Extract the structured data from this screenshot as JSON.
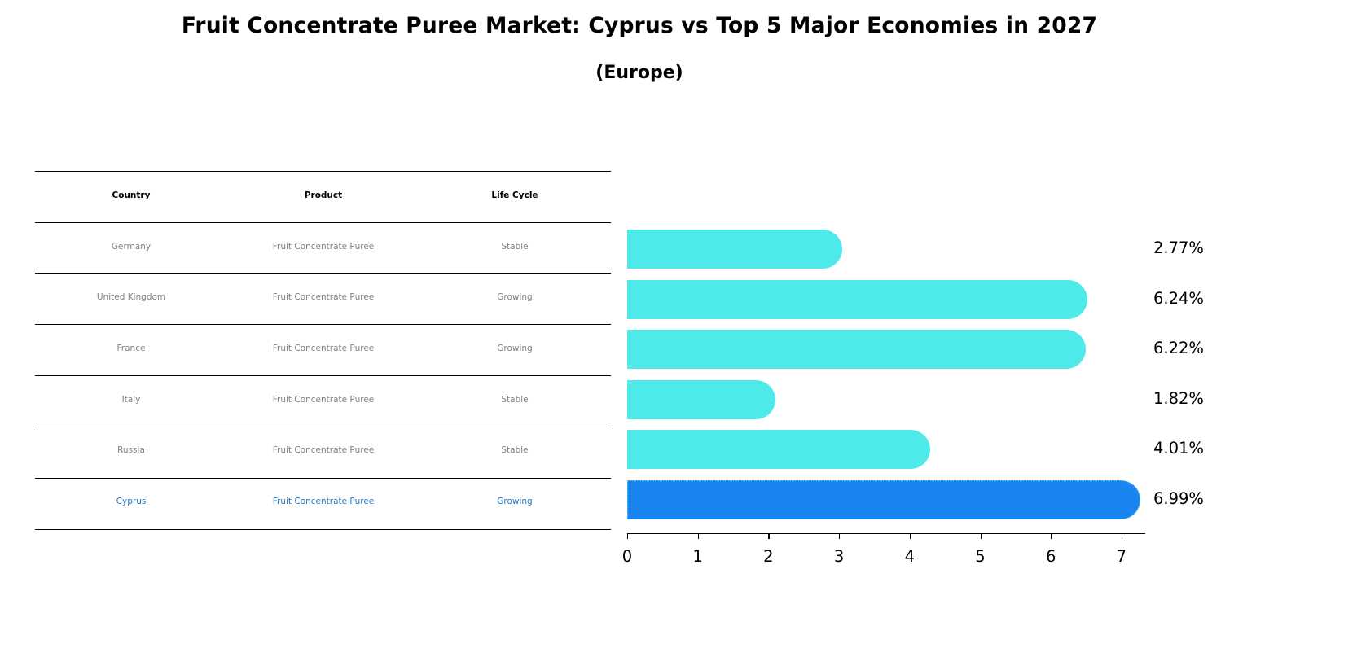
{
  "title": "Fruit Concentrate Puree Market: Cyprus vs Top 5 Major Economies in 2027",
  "subtitle": "(Europe)",
  "colors": {
    "bar_default": "#4eeaea",
    "bar_highlight": "#1a85f0",
    "text_muted": "#808080",
    "text_highlight": "#1f77c4"
  },
  "table": {
    "headers": [
      "Country",
      "Product",
      "Life Cycle"
    ],
    "rows": [
      {
        "country": "Germany",
        "product": "Fruit Concentrate Puree",
        "life_cycle": "Stable",
        "highlight": false
      },
      {
        "country": "United Kingdom",
        "product": "Fruit Concentrate Puree",
        "life_cycle": "Growing",
        "highlight": false
      },
      {
        "country": "France",
        "product": "Fruit Concentrate Puree",
        "life_cycle": "Growing",
        "highlight": false
      },
      {
        "country": "Italy",
        "product": "Fruit Concentrate Puree",
        "life_cycle": "Stable",
        "highlight": false
      },
      {
        "country": "Russia",
        "product": "Fruit Concentrate Puree",
        "life_cycle": "Stable",
        "highlight": false
      },
      {
        "country": "Cyprus",
        "product": "Fruit Concentrate Puree",
        "life_cycle": "Growing",
        "highlight": true
      }
    ]
  },
  "chart_data": {
    "type": "bar",
    "orientation": "horizontal",
    "title": "Fruit Concentrate Puree Market: Cyprus vs Top 5 Major Economies in 2027",
    "subtitle": "(Europe)",
    "categories": [
      "Germany",
      "United Kingdom",
      "France",
      "Italy",
      "Russia",
      "Cyprus"
    ],
    "values": [
      2.77,
      6.24,
      6.22,
      1.82,
      4.01,
      6.99
    ],
    "value_labels": [
      "2.77%",
      "6.24%",
      "6.22%",
      "1.82%",
      "4.01%",
      "6.99%"
    ],
    "highlight": "Cyprus",
    "xlabel": "",
    "ylabel": "",
    "xlim": [
      0,
      7.35
    ],
    "xticks": [
      "0",
      "1",
      "2",
      "3",
      "4",
      "5",
      "6",
      "7"
    ],
    "grid": false,
    "legend": null
  }
}
